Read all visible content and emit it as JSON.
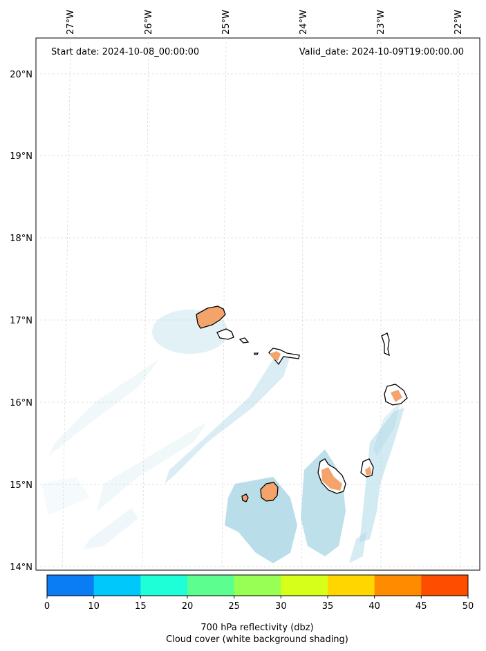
{
  "header": {
    "start_date": "Start date: 2024-10-08_00:00:00",
    "valid_date": "Valid_date: 2024-10-09T19:00:00.00"
  },
  "lon_labels": [
    "27°W",
    "26°W",
    "25°W",
    "24°W",
    "23°W",
    "22°W"
  ],
  "lat_labels": [
    "20°N",
    "19°N",
    "18°N",
    "17°N",
    "16°N",
    "15°N",
    "14°N"
  ],
  "colorbar": {
    "ticks": [
      "0",
      "10",
      "15",
      "20",
      "25",
      "30",
      "35",
      "40",
      "45",
      "50"
    ],
    "colors": [
      "#0a7df5",
      "#00c8fa",
      "#1effd8",
      "#5cff8f",
      "#98ff55",
      "#d6ff1a",
      "#ffd600",
      "#ff8c00",
      "#ff4d00"
    ],
    "label_line1": "700 hPa reflectivity (dbz)",
    "label_line2": "Cloud cover (white background shading)"
  },
  "map": {
    "grid_color": "#d9d9d9",
    "cloud_color": "#add8e6",
    "reflectivity_color": "#f4a46a"
  }
}
